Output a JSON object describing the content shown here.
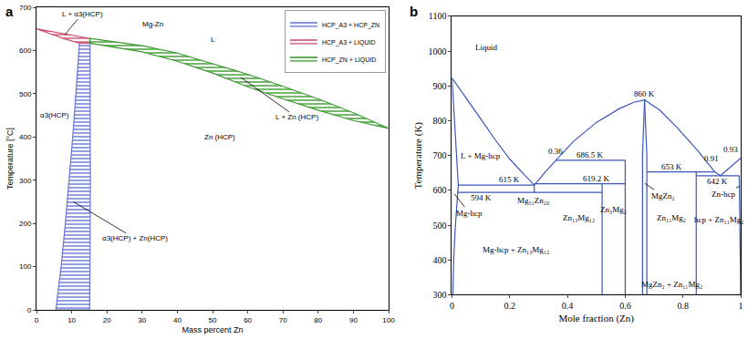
{
  "chart_data": [
    {
      "type": "line",
      "title": "a",
      "x_label": "Mass percent Zn",
      "y_label": "Temperature [°C]",
      "xlim": [
        0,
        100
      ],
      "xticks": [
        0,
        10,
        20,
        30,
        40,
        50,
        60,
        70,
        80,
        90,
        100
      ],
      "ylim": [
        0,
        700
      ],
      "yticks": [
        0,
        100,
        200,
        300,
        400,
        500,
        600,
        700
      ],
      "grid": false,
      "legend": "top-right",
      "series": [
        {
          "name": "HCP_A3 + HCP_ZN",
          "color": "#6674d4",
          "type": "area",
          "x": [
            5.5,
            7,
            8.2,
            9.3,
            10.3,
            11.2,
            12.2,
            15.2,
            15.3,
            15.3,
            15.2,
            15.1,
            5.5
          ],
          "values": [
            0,
            100,
            200,
            300,
            400,
            500,
            617,
            617,
            500,
            300,
            100,
            0,
            0
          ]
        },
        {
          "name": "HCP_A3 + LIQUID",
          "color": "#c8506e",
          "type": "area",
          "x": [
            0,
            5,
            10,
            15.2,
            15.2,
            12.2,
            8,
            4,
            0
          ],
          "values": [
            650,
            643,
            636,
            628,
            617,
            617,
            627,
            638,
            650
          ]
        },
        {
          "name": "HCP_ZN + LIQUID",
          "color": "#3a9a2e",
          "type": "area",
          "x": [
            15.2,
            20,
            30,
            40,
            50,
            60,
            70,
            80,
            90,
            100,
            90,
            80,
            70,
            60,
            50,
            40,
            30,
            20,
            15.2,
            15.2
          ],
          "values": [
            628,
            622,
            611,
            594,
            570,
            545,
            517,
            488,
            456,
            420,
            438,
            462,
            488,
            516,
            548,
            575,
            597,
            610,
            617,
            628
          ]
        }
      ],
      "annotations": [
        {
          "text": "Mg-Zn",
          "x": 33,
          "y": 660
        },
        {
          "text": "L",
          "x": 50,
          "y": 625
        },
        {
          "text": "L + α3(HCP)",
          "x": 13,
          "y": 685,
          "arrow_x": 8,
          "arrow_y": 636
        },
        {
          "text": "α3(HCP)",
          "x": 5.3,
          "y": 450
        },
        {
          "text": "Zn (HCP)",
          "x": 52,
          "y": 400
        },
        {
          "text": "L + Zn (HCP)",
          "x": 74,
          "y": 445,
          "arrow_x": 58,
          "arrow_y": 538
        },
        {
          "text": "α3(HCP) + Zn(HCP)",
          "x": 28,
          "y": 165,
          "arrow_x": 10.5,
          "arrow_y": 250
        }
      ]
    },
    {
      "type": "line",
      "title": "b",
      "x_label": "Mole fraction (Zn)",
      "y_label": "Temperature (K)",
      "xlim": [
        0,
        1
      ],
      "xticks": [
        0,
        0.2,
        0.4,
        0.6,
        0.8,
        1
      ],
      "ylim": [
        300,
        1100
      ],
      "yticks": [
        300,
        400,
        500,
        600,
        700,
        800,
        900,
        1000,
        1100
      ],
      "grid": false,
      "color": "#3a55b8",
      "series": [
        {
          "x": [
            0,
            0.05,
            0.1,
            0.15,
            0.2,
            0.25,
            0.285
          ],
          "values": [
            923,
            865,
            805,
            745,
            690,
            645,
            615
          ]
        },
        {
          "x": [
            0,
            0.01,
            0.022,
            0.02,
            0.012,
            0.006,
            0.003
          ],
          "values": [
            923,
            780,
            615,
            594,
            500,
            400,
            300
          ]
        },
        {
          "x": [
            0.022,
            0.285
          ],
          "values": [
            615,
            615
          ]
        },
        {
          "x": [
            0.02,
            0.52
          ],
          "values": [
            594,
            594
          ]
        },
        {
          "x": [
            0.285,
            0.285
          ],
          "values": [
            615,
            594
          ]
        },
        {
          "x": [
            0.285,
            0.32,
            0.36,
            0.42,
            0.5,
            0.58,
            0.63,
            0.667
          ],
          "values": [
            615,
            650,
            686.5,
            740,
            795,
            835,
            853,
            860
          ]
        },
        {
          "x": [
            0.36,
            0.6
          ],
          "values": [
            686.5,
            686.5
          ]
        },
        {
          "x": [
            0.285,
            0.6
          ],
          "values": [
            619.2,
            619.2
          ]
        },
        {
          "x": [
            0.52,
            0.52
          ],
          "values": [
            619.2,
            300
          ]
        },
        {
          "x": [
            0.6,
            0.6
          ],
          "values": [
            686.5,
            300
          ]
        },
        {
          "x": [
            0.667,
            0.66,
            0.66
          ],
          "values": [
            860,
            700,
            300
          ]
        },
        {
          "x": [
            0.667,
            0.675,
            0.675
          ],
          "values": [
            860,
            700,
            300
          ]
        },
        {
          "x": [
            0.667,
            0.72,
            0.78,
            0.85,
            0.91,
            0.93
          ],
          "values": [
            860,
            830,
            780,
            715,
            653,
            642
          ]
        },
        {
          "x": [
            0.93,
            0.96,
            1
          ],
          "values": [
            642,
            665,
            693
          ]
        },
        {
          "x": [
            0.675,
            0.91
          ],
          "values": [
            653,
            653
          ]
        },
        {
          "x": [
            0.846,
            0.846
          ],
          "values": [
            653,
            300
          ]
        },
        {
          "x": [
            0.846,
            0.995
          ],
          "values": [
            642,
            642
          ]
        },
        {
          "x": [
            0.995,
            0.998,
            1
          ],
          "values": [
            642,
            450,
            300
          ]
        }
      ],
      "annotations": [
        {
          "text": "Liquid",
          "x": 0.12,
          "y": 1010
        },
        {
          "text": "L + Mg-hcp",
          "x": 0.1,
          "y": 700
        },
        {
          "text": "860 K",
          "x": 0.667,
          "y": 878
        },
        {
          "text": "0.36",
          "x": 0.36,
          "y": 712
        },
        {
          "text": "686.5 K",
          "x": 0.48,
          "y": 702
        },
        {
          "text": "615 K",
          "x": 0.2,
          "y": 632
        },
        {
          "text": "594 K",
          "x": 0.1,
          "y": 578
        },
        {
          "text": "619.2 K",
          "x": 0.5,
          "y": 634
        },
        {
          "text": "653 K",
          "x": 0.76,
          "y": 667
        },
        {
          "text": "0.91",
          "x": 0.9,
          "y": 692
        },
        {
          "text": "0.93",
          "x": 0.965,
          "y": 718
        },
        {
          "text": "642 K",
          "x": 0.92,
          "y": 626
        },
        {
          "text": "Mg-hcp",
          "x": 0.06,
          "y": 535,
          "arrow_x": 0.008,
          "arrow_y": 590
        },
        {
          "text": "Mg₅₁Zn₂₀",
          "x": 0.28,
          "y": 572
        },
        {
          "text": "MgZn₂",
          "x": 0.73,
          "y": 585,
          "arrow_x": 0.668,
          "arrow_y": 620
        },
        {
          "text": "Mg-hcp + Zn₁₃Mg₁₂",
          "x": 0.22,
          "y": 430
        },
        {
          "text": "Zn₁₃Mg₁₂",
          "x": 0.44,
          "y": 520
        },
        {
          "text": "Zn₃Mg₂",
          "x": 0.56,
          "y": 545
        },
        {
          "text": "Zn₁₁Mg₂",
          "x": 0.76,
          "y": 520
        },
        {
          "text": "Zn-hcp",
          "x": 0.94,
          "y": 590,
          "arrow_x": 0.997,
          "arrow_y": 612
        },
        {
          "text": "hcp + Zn₁₁Mg₂",
          "x": 0.923,
          "y": 515
        },
        {
          "text": "MgZn₂ + Zn₁₁Mg₂",
          "x": 0.76,
          "y": 330
        }
      ]
    }
  ]
}
